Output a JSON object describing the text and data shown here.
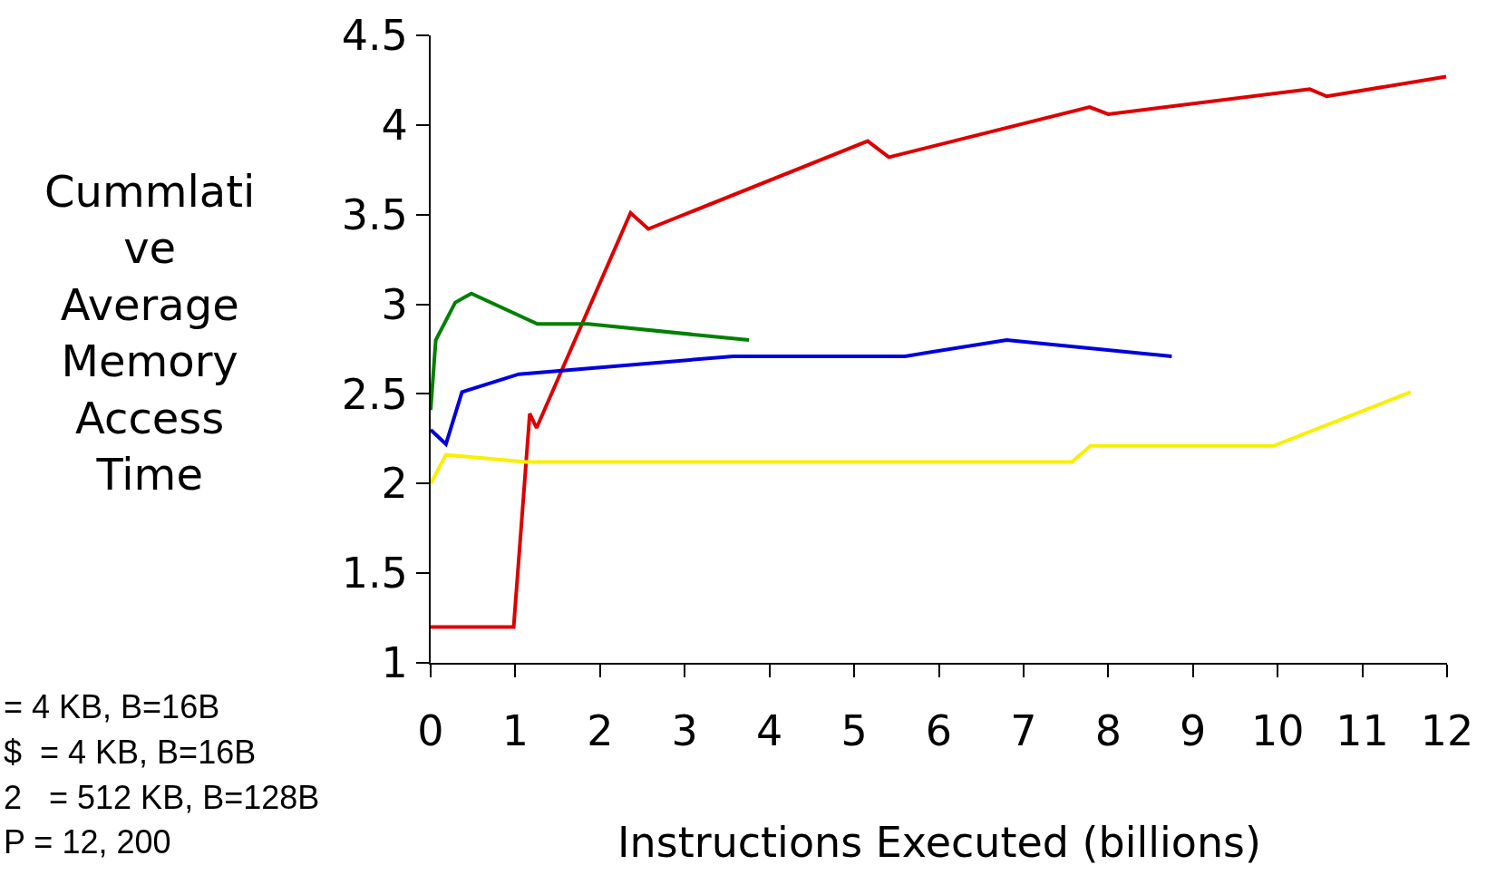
{
  "chart_data": {
    "type": "line",
    "xlabel": "Instructions Executed (billions)",
    "ylabel": "Cummlative Average Memory Access Time",
    "xlim": [
      0,
      12
    ],
    "xticks": [
      0,
      1,
      2,
      3,
      4,
      5,
      6,
      7,
      8,
      9,
      10,
      11,
      12
    ],
    "ylim": [
      1,
      4.5
    ],
    "yticks": [
      1,
      1.5,
      2,
      2.5,
      3,
      3.5,
      4,
      4.5
    ],
    "marker": "none",
    "line_style": "solid",
    "series": [
      {
        "color": "#dd0000",
        "x": [
          0,
          0.98,
          1.17,
          1.25,
          2.36,
          2.57,
          5.16,
          5.41,
          7.78,
          8.0,
          10.38,
          10.58,
          11.99
        ],
        "values": [
          1.2,
          1.2,
          2.39,
          2.31,
          3.51,
          3.42,
          3.91,
          3.82,
          4.1,
          4.06,
          4.2,
          4.16,
          4.27
        ]
      },
      {
        "color": "#008000",
        "x": [
          0,
          0.06,
          0.29,
          0.48,
          1.26,
          1.86,
          3.76
        ],
        "values": [
          2.41,
          2.8,
          3.01,
          3.06,
          2.89,
          2.89,
          2.8
        ]
      },
      {
        "color": "#0000dd",
        "x": [
          0,
          0.18,
          0.37,
          1.04,
          3.57,
          5.6,
          6.8,
          8.75
        ],
        "values": [
          2.3,
          2.22,
          2.51,
          2.61,
          2.71,
          2.71,
          2.8,
          2.71
        ]
      },
      {
        "color": "#f8f000",
        "x": [
          0,
          0.18,
          1.13,
          7.57,
          7.79,
          9.95,
          11.57
        ],
        "values": [
          2.0,
          2.16,
          2.12,
          2.12,
          2.21,
          2.21,
          2.51
        ]
      }
    ],
    "annotations": [
      "= 4 KB, B=16B",
      "$  = 4 KB, B=16B",
      "2   = 512 KB, B=128B",
      "P = 12, 200"
    ]
  }
}
